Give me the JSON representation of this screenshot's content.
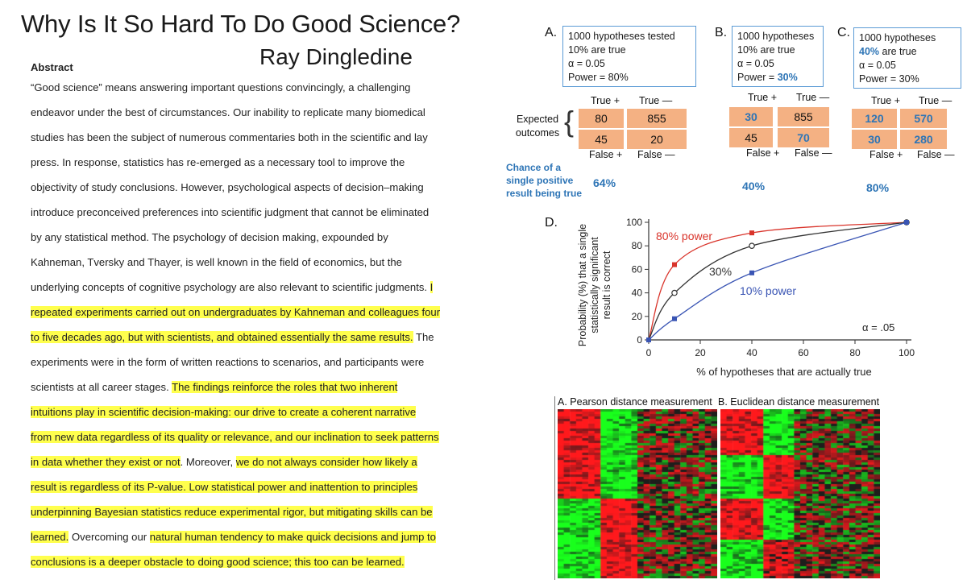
{
  "paper": {
    "title": "Why Is It So Hard To Do Good Science?",
    "author": "Ray Dingledine",
    "abstract_heading": "Abstract",
    "abstract_lines": [
      [
        {
          "t": "“Good science” means answering important questions convincingly, a challenging",
          "h": false
        }
      ],
      [
        {
          "t": "endeavor under the best of circumstances. Our inability to replicate many biomedical",
          "h": false
        }
      ],
      [
        {
          "t": "studies has been the subject of numerous commentaries both in the scientific and lay",
          "h": false
        }
      ],
      [
        {
          "t": "press. In response, statistics has re-emerged as a necessary tool to improve the",
          "h": false
        }
      ],
      [
        {
          "t": "objectivity of study conclusions. However, psychological aspects of decision–making",
          "h": false
        }
      ],
      [
        {
          "t": "introduce preconceived preferences into scientific judgment that cannot be eliminated",
          "h": false
        }
      ],
      [
        {
          "t": "by any statistical method. The psychology of decision making, expounded by",
          "h": false
        }
      ],
      [
        {
          "t": "Kahneman, Tversky and Thayer, is well known in the field of economics, but the",
          "h": false
        }
      ],
      [
        {
          "t": "underlying concepts of cognitive psychology are also relevant to scientific judgments. ",
          "h": false
        },
        {
          "t": "I",
          "h": true
        }
      ],
      [
        {
          "t": "repeated experiments carried out on undergraduates by Kahneman and colleagues four",
          "h": true
        }
      ],
      [
        {
          "t": "to five decades ago, but with scientists, and obtained essentially the same results.",
          "h": true
        },
        {
          "t": " The",
          "h": false
        }
      ],
      [
        {
          "t": "experiments were in the form of written reactions to scenarios, and participants were",
          "h": false
        }
      ],
      [
        {
          "t": "scientists at all career stages. ",
          "h": false
        },
        {
          "t": "The findings reinforce the roles that two inherent",
          "h": true
        }
      ],
      [
        {
          "t": "intuitions play in scientific decision-making: our drive to create a coherent narrative",
          "h": true
        }
      ],
      [
        {
          "t": "from new data regardless of its quality or relevance, and our inclination to seek patterns",
          "h": true
        }
      ],
      [
        {
          "t": "in data whether they exist or not",
          "h": true
        },
        {
          "t": ". Moreover, ",
          "h": false
        },
        {
          "t": "we do not always consider how likely a",
          "h": true
        }
      ],
      [
        {
          "t": "result is regardless of its P-value.  Low statistical power and inattention to principles",
          "h": true
        }
      ],
      [
        {
          "t": "underpinning Bayesian statistics reduce experimental rigor, but mitigating skills can be",
          "h": true
        }
      ],
      [
        {
          "t": "learned.",
          "h": true
        },
        {
          "t": " Overcoming our ",
          "h": false
        },
        {
          "t": "natural human tendency to make quick decisions and jump to",
          "h": true
        }
      ],
      [
        {
          "t": "conclusions is a deeper obstacle to doing good science; this too can be learned.",
          "h": true
        }
      ]
    ]
  },
  "figure": {
    "panels": [
      {
        "letter": "A.",
        "box_lines": [
          {
            "t": "1000 hypotheses tested",
            "emph": ""
          },
          {
            "t": "10% are true",
            "emph": ""
          },
          {
            "t": "α = 0.05",
            "emph": ""
          },
          {
            "t": "Power = 80%",
            "emph": ""
          }
        ],
        "true_plus": "True +",
        "true_minus": "True —",
        "false_plus": "False +",
        "false_minus": "False —",
        "cells": [
          "80",
          "855",
          "45",
          "20"
        ],
        "bold_cells": [
          false,
          false,
          false,
          false
        ],
        "chance": "64%"
      },
      {
        "letter": "B.",
        "box_lines": [
          {
            "t": "1000 hypotheses",
            "emph": ""
          },
          {
            "t": "10% are true",
            "emph": ""
          },
          {
            "t": "α = 0.05",
            "emph": ""
          },
          {
            "t": "Power = ",
            "emph": "30%"
          }
        ],
        "true_plus": "True +",
        "true_minus": "True —",
        "false_plus": "False +",
        "false_minus": "False —",
        "cells": [
          "30",
          "855",
          "45",
          "70"
        ],
        "bold_cells": [
          true,
          false,
          false,
          true
        ],
        "chance": "40%"
      },
      {
        "letter": "C.",
        "box_lines": [
          {
            "t": "1000 hypotheses",
            "emph": ""
          },
          {
            "t": " are true",
            "emph": "40%"
          },
          {
            "t": "α = 0.05",
            "emph": ""
          },
          {
            "t": "Power = 30%",
            "emph": ""
          }
        ],
        "true_plus": "True +",
        "true_minus": "True —",
        "false_plus": "False +",
        "false_minus": "False —",
        "cells": [
          "120",
          "570",
          "30",
          "280"
        ],
        "bold_cells": [
          true,
          true,
          true,
          true
        ],
        "chance": "80%"
      }
    ],
    "expected_outcomes_label": "Expected\noutcomes",
    "chance_label": "Chance of a\nsingle positive\nresult being true",
    "heatmap_a_title": "A. Pearson distance measurement",
    "heatmap_b_title": "B. Euclidean distance measurement",
    "colors": {
      "red": "#d9342b",
      "black": "#333333",
      "blue": "#3a55b4",
      "box_border": "#5b9bd5",
      "cell": "#f4b183",
      "highlight": "#ffff4d"
    }
  },
  "chart_data": {
    "type": "line",
    "panel_letter": "D.",
    "xlabel": "% of hypotheses that are actually true",
    "ylabel": "Probability (%) that a single\nstatistically significant\nresult is correct",
    "xlim": [
      0,
      100
    ],
    "ylim": [
      0,
      100
    ],
    "xticks": [
      0,
      20,
      40,
      60,
      80,
      100
    ],
    "yticks": [
      0,
      20,
      40,
      60,
      80,
      100
    ],
    "annotation": "α = .05",
    "series": [
      {
        "name": "80% power",
        "color": "#d9342b",
        "marker": "square",
        "x": [
          0,
          10,
          40,
          100
        ],
        "y": [
          0,
          64,
          91,
          100
        ]
      },
      {
        "name": "30%",
        "color": "#333333",
        "marker": "circle",
        "x": [
          0,
          10,
          40,
          100
        ],
        "y": [
          0,
          40,
          80,
          100
        ]
      },
      {
        "name": "10% power",
        "color": "#3a55b4",
        "marker": "square",
        "x": [
          0,
          10,
          40,
          100
        ],
        "y": [
          0,
          18,
          57,
          100
        ]
      }
    ]
  }
}
